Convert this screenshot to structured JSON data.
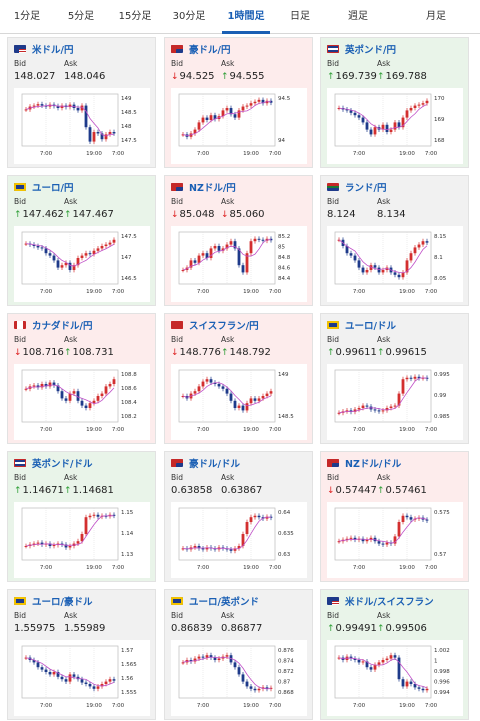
{
  "tabs": [
    {
      "label": "1分足",
      "active": false
    },
    {
      "label": "5分足",
      "active": false
    },
    {
      "label": "15分足",
      "active": false
    },
    {
      "label": "30分足",
      "active": false
    },
    {
      "label": "1時間足",
      "active": true
    },
    {
      "label": "日足",
      "active": false
    },
    {
      "label": "週足",
      "active": false
    },
    {
      "label": "月足",
      "active": false
    }
  ],
  "labels": {
    "bid": "Bid",
    "ask": "Ask"
  },
  "cards": [
    {
      "pair": "米ドル/円",
      "flag": "us",
      "state": "neutral",
      "bid": "148.027",
      "ask": "148.046",
      "bid_dir": "",
      "ask_dir": "",
      "chart": {
        "yticks": [
          "149",
          "148.5",
          "148",
          "147.5"
        ],
        "xticks": [
          "7:00",
          "19:00",
          "7:00"
        ],
        "shape": [
          0.72,
          0.78,
          0.8,
          0.83,
          0.8,
          0.78,
          0.82,
          0.79,
          0.75,
          0.8,
          0.77,
          0.82,
          0.75,
          0.7,
          0.8,
          0.35,
          0.05,
          0.25,
          0.22,
          0.1,
          0.2,
          0.25,
          0.22
        ]
      }
    },
    {
      "pair": "豪ドル/円",
      "flag": "au",
      "state": "down",
      "bid": "94.525",
      "ask": "94.555",
      "bid_dir": "down",
      "ask_dir": "up",
      "chart": {
        "yticks": [
          "94.5",
          "94"
        ],
        "xticks": [
          "7:00",
          "19:00",
          "7:00"
        ],
        "shape": [
          0.2,
          0.15,
          0.22,
          0.3,
          0.45,
          0.55,
          0.5,
          0.6,
          0.52,
          0.58,
          0.7,
          0.75,
          0.62,
          0.55,
          0.7,
          0.78,
          0.8,
          0.85,
          0.88,
          0.92,
          0.85,
          0.9,
          0.86
        ]
      }
    },
    {
      "pair": "英ポンド/円",
      "flag": "gb",
      "state": "up",
      "bid": "169.739",
      "ask": "169.788",
      "bid_dir": "up",
      "ask_dir": "up",
      "chart": {
        "yticks": [
          "170",
          "169",
          "168"
        ],
        "xticks": [
          "7:00",
          "19:00",
          "7:00"
        ],
        "shape": [
          0.75,
          0.72,
          0.7,
          0.65,
          0.6,
          0.55,
          0.45,
          0.3,
          0.2,
          0.35,
          0.3,
          0.4,
          0.25,
          0.3,
          0.45,
          0.35,
          0.55,
          0.7,
          0.75,
          0.8,
          0.82,
          0.85,
          0.9
        ]
      }
    },
    {
      "pair": "ユーロ/円",
      "flag": "eu",
      "state": "up",
      "bid": "147.462",
      "ask": "147.467",
      "bid_dir": "up",
      "ask_dir": "up",
      "chart": {
        "yticks": [
          "147.5",
          "147",
          "146.5"
        ],
        "xticks": [
          "7:00",
          "19:00",
          "7:00"
        ],
        "shape": [
          0.8,
          0.78,
          0.75,
          0.72,
          0.7,
          0.6,
          0.55,
          0.45,
          0.3,
          0.35,
          0.4,
          0.25,
          0.35,
          0.5,
          0.55,
          0.6,
          0.58,
          0.65,
          0.7,
          0.75,
          0.78,
          0.82,
          0.88
        ]
      }
    },
    {
      "pair": "NZドル/円",
      "flag": "nz",
      "state": "down",
      "bid": "85.048",
      "ask": "85.060",
      "bid_dir": "down",
      "ask_dir": "down",
      "chart": {
        "yticks": [
          "85.2",
          "85",
          "84.8",
          "84.6",
          "84.4"
        ],
        "xticks": [
          "7:00",
          "19:00",
          "7:00"
        ],
        "shape": [
          0.25,
          0.3,
          0.45,
          0.4,
          0.55,
          0.6,
          0.5,
          0.7,
          0.75,
          0.65,
          0.7,
          0.78,
          0.85,
          0.7,
          0.35,
          0.2,
          0.6,
          0.85,
          0.9,
          0.88,
          0.86,
          0.9,
          0.87
        ]
      }
    },
    {
      "pair": "ランド/円",
      "flag": "za",
      "state": "neutral",
      "bid": "8.124",
      "ask": "8.134",
      "bid_dir": "",
      "ask_dir": "",
      "chart": {
        "yticks": [
          "8.15",
          "8.1",
          "8.05"
        ],
        "xticks": [
          "7:00",
          "19:00",
          "7:00"
        ],
        "shape": [
          0.88,
          0.75,
          0.6,
          0.55,
          0.45,
          0.3,
          0.2,
          0.25,
          0.35,
          0.3,
          0.2,
          0.25,
          0.3,
          0.2,
          0.15,
          0.1,
          0.2,
          0.45,
          0.6,
          0.72,
          0.78,
          0.85,
          0.82
        ]
      }
    },
    {
      "pair": "カナダドル/円",
      "flag": "ca",
      "state": "down",
      "bid": "108.716",
      "ask": "108.731",
      "bid_dir": "down",
      "ask_dir": "up",
      "chart": {
        "yticks": [
          "108.8",
          "108.6",
          "108.4",
          "108.2"
        ],
        "xticks": [
          "7:00",
          "19:00",
          "7:00"
        ],
        "shape": [
          0.65,
          0.7,
          0.72,
          0.68,
          0.75,
          0.7,
          0.78,
          0.72,
          0.6,
          0.45,
          0.4,
          0.55,
          0.6,
          0.4,
          0.3,
          0.25,
          0.35,
          0.4,
          0.5,
          0.55,
          0.7,
          0.75,
          0.85
        ]
      }
    },
    {
      "pair": "スイスフラン/円",
      "flag": "ch",
      "state": "down",
      "bid": "148.776",
      "ask": "148.792",
      "bid_dir": "down",
      "ask_dir": "up",
      "chart": {
        "yticks": [
          "149",
          "148.5"
        ],
        "xticks": [
          "7:00",
          "19:00",
          "7:00"
        ],
        "shape": [
          0.5,
          0.45,
          0.55,
          0.6,
          0.7,
          0.8,
          0.85,
          0.78,
          0.75,
          0.7,
          0.65,
          0.55,
          0.4,
          0.25,
          0.3,
          0.2,
          0.35,
          0.45,
          0.4,
          0.45,
          0.5,
          0.55,
          0.6
        ]
      }
    },
    {
      "pair": "ユーロ/ドル",
      "flag": "eu",
      "state": "neutral",
      "bid": "0.99611",
      "ask": "0.99615",
      "bid_dir": "up",
      "ask_dir": "up",
      "chart": {
        "yticks": [
          "0.995",
          "0.99",
          "0.985"
        ],
        "xticks": [
          "7:00",
          "19:00",
          "7:00"
        ],
        "shape": [
          0.15,
          0.18,
          0.2,
          0.17,
          0.22,
          0.25,
          0.3,
          0.28,
          0.22,
          0.2,
          0.18,
          0.2,
          0.25,
          0.28,
          0.3,
          0.55,
          0.85,
          0.88,
          0.86,
          0.9,
          0.87,
          0.88,
          0.86
        ]
      }
    },
    {
      "pair": "英ポンド/ドル",
      "flag": "gb",
      "state": "up",
      "bid": "1.14671",
      "ask": "1.14681",
      "bid_dir": "up",
      "ask_dir": "up",
      "chart": {
        "yticks": [
          "1.15",
          "1.14",
          "1.13"
        ],
        "xticks": [
          "7:00",
          "19:00",
          "7:00"
        ],
        "shape": [
          0.25,
          0.28,
          0.3,
          0.32,
          0.28,
          0.3,
          0.25,
          0.27,
          0.3,
          0.28,
          0.22,
          0.25,
          0.3,
          0.35,
          0.5,
          0.85,
          0.88,
          0.9,
          0.86,
          0.88,
          0.87,
          0.9,
          0.88
        ]
      }
    },
    {
      "pair": "豪ドル/ドル",
      "flag": "au",
      "state": "neutral",
      "bid": "0.63858",
      "ask": "0.63867",
      "bid_dir": "",
      "ask_dir": "",
      "chart": {
        "yticks": [
          "0.64",
          "0.635",
          "0.63"
        ],
        "xticks": [
          "7:00",
          "19:00",
          "7:00"
        ],
        "shape": [
          0.2,
          0.18,
          0.22,
          0.25,
          0.2,
          0.18,
          0.22,
          0.2,
          0.18,
          0.22,
          0.2,
          0.18,
          0.15,
          0.2,
          0.25,
          0.5,
          0.75,
          0.85,
          0.88,
          0.85,
          0.82,
          0.86,
          0.84
        ]
      }
    },
    {
      "pair": "NZドル/ドル",
      "flag": "nz",
      "state": "down",
      "bid": "0.57447",
      "ask": "0.57461",
      "bid_dir": "down",
      "ask_dir": "up",
      "chart": {
        "yticks": [
          "0.575",
          "0.57"
        ],
        "xticks": [
          "7:00",
          "19:00",
          "7:00"
        ],
        "shape": [
          0.35,
          0.38,
          0.4,
          0.42,
          0.38,
          0.4,
          0.35,
          0.38,
          0.42,
          0.35,
          0.3,
          0.28,
          0.32,
          0.3,
          0.45,
          0.75,
          0.88,
          0.85,
          0.8,
          0.82,
          0.84,
          0.8,
          0.78
        ]
      }
    },
    {
      "pair": "ユーロ/豪ドル",
      "flag": "eu",
      "state": "neutral",
      "bid": "1.55975",
      "ask": "1.55989",
      "bid_dir": "",
      "ask_dir": "",
      "chart": {
        "yticks": [
          "1.57",
          "1.565",
          "1.56",
          "1.555"
        ],
        "xticks": [
          "7:00",
          "19:00",
          "7:00"
        ],
        "shape": [
          0.8,
          0.75,
          0.7,
          0.6,
          0.55,
          0.5,
          0.45,
          0.5,
          0.4,
          0.35,
          0.3,
          0.45,
          0.4,
          0.35,
          0.28,
          0.25,
          0.2,
          0.15,
          0.2,
          0.25,
          0.3,
          0.35,
          0.32
        ]
      }
    },
    {
      "pair": "ユーロ/英ポンド",
      "flag": "eu",
      "state": "neutral",
      "bid": "0.86839",
      "ask": "0.86877",
      "bid_dir": "",
      "ask_dir": "",
      "chart": {
        "yticks": [
          "0.876",
          "0.874",
          "0.872",
          "0.87",
          "0.868"
        ],
        "xticks": [
          "7:00",
          "19:00",
          "7:00"
        ],
        "shape": [
          0.7,
          0.75,
          0.72,
          0.78,
          0.82,
          0.8,
          0.85,
          0.8,
          0.75,
          0.78,
          0.82,
          0.85,
          0.7,
          0.6,
          0.45,
          0.3,
          0.2,
          0.15,
          0.12,
          0.15,
          0.18,
          0.15,
          0.17
        ]
      }
    },
    {
      "pair": "米ドル/スイスフラン",
      "flag": "us",
      "state": "up",
      "bid": "0.99491",
      "ask": "0.99506",
      "bid_dir": "up",
      "ask_dir": "up",
      "chart": {
        "yticks": [
          "1.002",
          "1",
          "0.998",
          "0.996",
          "0.994"
        ],
        "xticks": [
          "7:00",
          "19:00",
          "7:00"
        ],
        "shape": [
          0.8,
          0.75,
          0.82,
          0.78,
          0.75,
          0.7,
          0.72,
          0.6,
          0.55,
          0.65,
          0.7,
          0.75,
          0.78,
          0.85,
          0.8,
          0.35,
          0.2,
          0.3,
          0.25,
          0.18,
          0.15,
          0.12,
          0.15
        ]
      }
    }
  ],
  "colors": {
    "down_bg": "#fdecec",
    "up_bg": "#e9f4e9",
    "accent": "#1a5fb4",
    "candle_up": "#d32f2f",
    "candle_down": "#1e3a8a",
    "ma": "#c050c8"
  }
}
